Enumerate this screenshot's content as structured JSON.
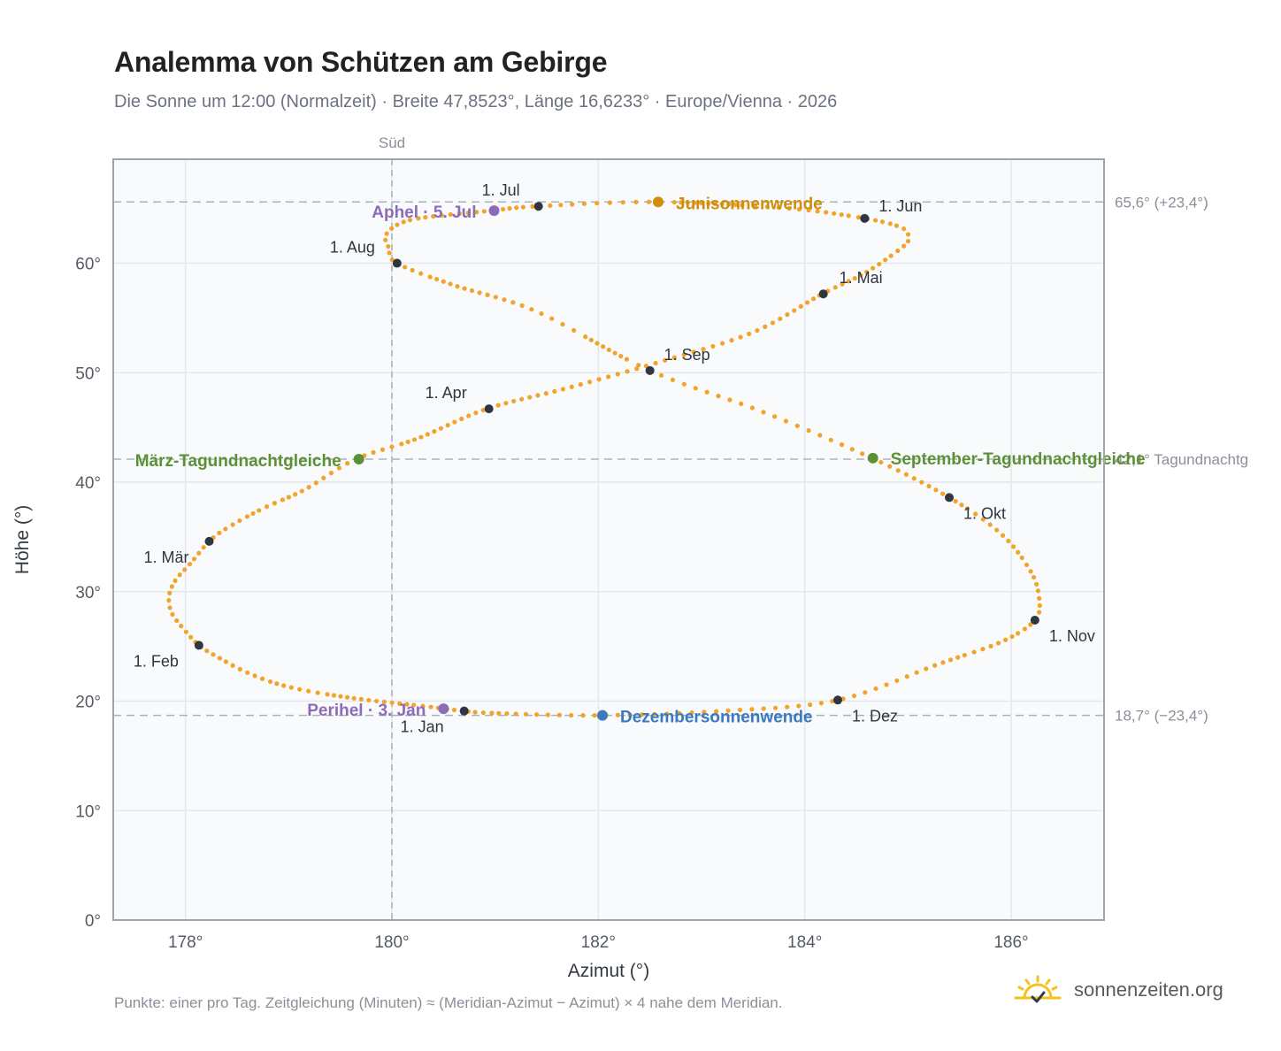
{
  "header": {
    "title": "Analemma von Schützen am Gebirge",
    "subtitle": "Die Sonne um 12:00 (Normalzeit) · Breite 47,8523°, Länge 16,6233° · Europe/Vienna · 2026"
  },
  "footer": {
    "note": "Punkte: einer pro Tag. Zeitgleichung (Minuten) ≈ (Meridian-Azimut − Azimut) × 4 nahe dem Meridian.",
    "brand": "sonnenzeiten.org",
    "logo_icon": "sun-check-icon"
  },
  "chart_data": {
    "type": "scatter",
    "xlabel": "Azimut (°)",
    "ylabel": "Höhe (°)",
    "xlim": [
      177.3,
      186.9
    ],
    "ylim": [
      0,
      69.5
    ],
    "xticks": [
      178,
      180,
      182,
      184,
      186
    ],
    "yticks": [
      0,
      10,
      20,
      30,
      40,
      50,
      60
    ],
    "xtick_labels": [
      "178°",
      "180°",
      "182°",
      "184°",
      "186°"
    ],
    "ytick_labels": [
      "0°",
      "10°",
      "20°",
      "30°",
      "40°",
      "50°",
      "60°"
    ],
    "grid": true,
    "meridian": {
      "x": 180,
      "label": "Süd"
    },
    "reference_lines": [
      {
        "y": 65.6,
        "label": "65,6° (+23,4°)"
      },
      {
        "y": 42.1,
        "label": "42,1° Tagundnachtg"
      },
      {
        "y": 18.7,
        "label": "18,7° (−23,4°)"
      }
    ],
    "daily_points": [
      [
        180.68,
        19.1
      ],
      [
        180.3,
        19.55
      ],
      [
        179.6,
        20.3
      ],
      [
        179.0,
        21.3
      ],
      [
        178.6,
        22.6
      ],
      [
        178.28,
        24.2
      ],
      [
        178.13,
        25.1
      ],
      [
        178.0,
        26.4
      ],
      [
        177.87,
        28.0
      ],
      [
        177.84,
        29.5
      ],
      [
        177.9,
        31.0
      ],
      [
        178.05,
        32.6
      ],
      [
        178.23,
        34.6
      ],
      [
        178.4,
        35.8
      ],
      [
        178.75,
        37.6
      ],
      [
        179.15,
        39.3
      ],
      [
        179.65,
        42.1
      ],
      [
        180.25,
        44.0
      ],
      [
        180.92,
        46.7
      ],
      [
        181.7,
        48.6
      ],
      [
        182.6,
        51.0
      ],
      [
        183.5,
        53.7
      ],
      [
        184.17,
        57.2
      ],
      [
        184.6,
        59.2
      ],
      [
        184.95,
        61.5
      ],
      [
        185.0,
        62.2
      ],
      [
        184.95,
        63.2
      ],
      [
        184.58,
        64.1
      ],
      [
        183.8,
        65.05
      ],
      [
        182.55,
        65.6
      ],
      [
        181.4,
        65.2
      ],
      [
        180.96,
        64.8
      ],
      [
        180.2,
        64.0
      ],
      [
        179.95,
        62.7
      ],
      [
        179.97,
        61.4
      ],
      [
        180.05,
        60.0
      ],
      [
        180.6,
        58.0
      ],
      [
        181.4,
        55.6
      ],
      [
        182.5,
        50.2
      ],
      [
        183.6,
        46.4
      ],
      [
        184.65,
        42.2
      ],
      [
        185.4,
        38.6
      ],
      [
        185.9,
        35.3
      ],
      [
        186.18,
        32.0
      ],
      [
        186.27,
        29.5
      ],
      [
        186.23,
        27.4
      ],
      [
        185.9,
        25.4
      ],
      [
        185.3,
        23.4
      ],
      [
        184.32,
        20.1
      ],
      [
        183.2,
        19.1
      ],
      [
        182.02,
        18.7
      ],
      [
        181.0,
        18.9
      ],
      [
        180.68,
        19.1
      ]
    ],
    "month_labels": [
      {
        "label": "1. Jan",
        "x": 180.7,
        "y": 19.1
      },
      {
        "label": "1. Feb",
        "x": 178.13,
        "y": 25.1
      },
      {
        "label": "1. Mär",
        "x": 178.23,
        "y": 34.6
      },
      {
        "label": "1. Apr",
        "x": 180.94,
        "y": 46.7
      },
      {
        "label": "1. Mai",
        "x": 184.18,
        "y": 57.2
      },
      {
        "label": "1. Jun",
        "x": 184.58,
        "y": 64.1
      },
      {
        "label": "1. Jul",
        "x": 181.42,
        "y": 65.2
      },
      {
        "label": "1. Aug",
        "x": 180.05,
        "y": 60.0
      },
      {
        "label": "1. Sep",
        "x": 182.5,
        "y": 50.2
      },
      {
        "label": "1. Okt",
        "x": 185.4,
        "y": 38.6
      },
      {
        "label": "1. Nov",
        "x": 186.23,
        "y": 27.4
      },
      {
        "label": "1. Dez",
        "x": 184.32,
        "y": 20.1
      }
    ],
    "events": [
      {
        "label": "Junisonnenwende",
        "x": 182.58,
        "y": 65.6,
        "color": "#d18d0c"
      },
      {
        "label": "Dezembersonnenwende",
        "x": 182.04,
        "y": 18.7,
        "color": "#3a7abf"
      },
      {
        "label": "März-Tagundnachtgleiche",
        "x": 179.68,
        "y": 42.1,
        "color": "#5b9135"
      },
      {
        "label": "September-Tagundnachtgleiche",
        "x": 184.66,
        "y": 42.2,
        "color": "#5b9135"
      },
      {
        "label": "Aphel · 5. Jul",
        "x": 180.99,
        "y": 64.8,
        "color": "#8e6bb8"
      },
      {
        "label": "Perihel · 3. Jan",
        "x": 180.5,
        "y": 19.3,
        "color": "#8e6bb8"
      }
    ],
    "colors": {
      "curve": "#f2a42a",
      "month_marker": "#2f3640",
      "plot_background": "#f8fafc",
      "grid": "#e3e8ef",
      "reference_line": "#a9b3bf"
    }
  }
}
